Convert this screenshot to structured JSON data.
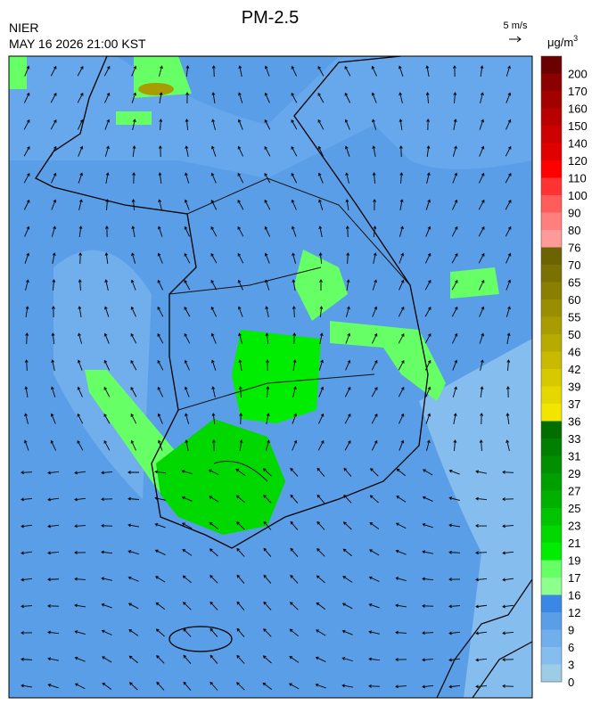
{
  "header": {
    "agency": "NIER",
    "timestamp": "MAY 16 2026 21:00 KST",
    "title": "PM-2.5",
    "wind_scale": "5 m/s",
    "unit_base": "μg/m",
    "unit_exp": "3"
  },
  "colorbar": {
    "levels": [
      200,
      170,
      160,
      150,
      140,
      120,
      110,
      100,
      90,
      80,
      76,
      70,
      65,
      60,
      55,
      50,
      46,
      42,
      39,
      37,
      36,
      33,
      31,
      29,
      27,
      25,
      23,
      21,
      19,
      17,
      16,
      12,
      9,
      6,
      3,
      0
    ],
    "colors": [
      "#6b0000",
      "#8b0000",
      "#a30000",
      "#b80000",
      "#cc0000",
      "#e00000",
      "#ff0000",
      "#ff3333",
      "#ff5c5c",
      "#ff7f7f",
      "#ff9a9a",
      "#6b6400",
      "#7a7100",
      "#8a7f00",
      "#998d00",
      "#a99c00",
      "#b8ab00",
      "#c8ba00",
      "#d7c900",
      "#e5d800",
      "#f2e600",
      "#006f00",
      "#007f00",
      "#008f00",
      "#009f00",
      "#00b000",
      "#00c400",
      "#00d800",
      "#00ec00",
      "#66ff66",
      "#8cff8c",
      "#3a88e4",
      "#5a9ee8",
      "#70aeec",
      "#84bdee",
      "#9dcde6"
    ]
  }
}
